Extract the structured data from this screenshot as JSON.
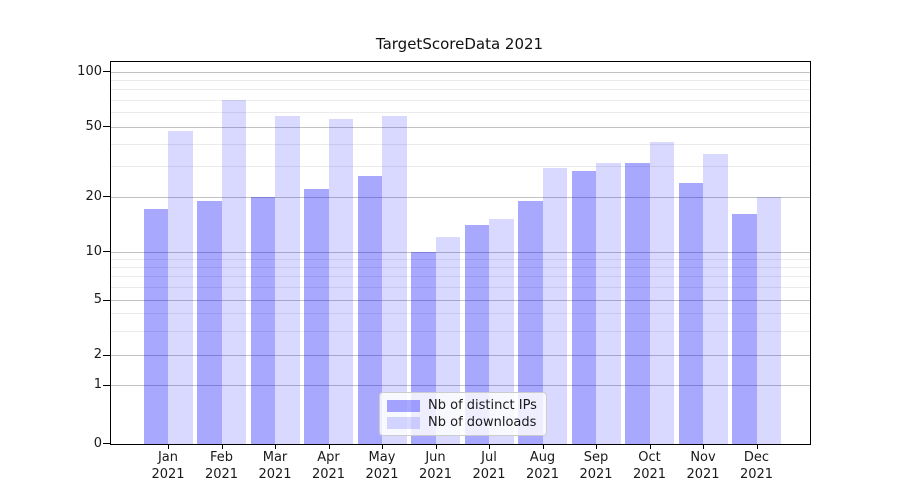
{
  "chart_data": {
    "type": "bar",
    "title": "TargetScoreData 2021",
    "categories": [
      "Jan",
      "Feb",
      "Mar",
      "Apr",
      "May",
      "Jun",
      "Jul",
      "Aug",
      "Sep",
      "Oct",
      "Nov",
      "Dec"
    ],
    "category_year": "2021",
    "series": [
      {
        "name": "Nb of distinct IPs",
        "color": "rgba(0,0,255,0.34)",
        "values": [
          17,
          19,
          20,
          22,
          26,
          10,
          14,
          19,
          28,
          31,
          24,
          16
        ]
      },
      {
        "name": "Nb of downloads",
        "color": "rgba(0,0,255,0.15)",
        "values": [
          47,
          70,
          57,
          55,
          57,
          12,
          15,
          29,
          31,
          41,
          35,
          20
        ]
      }
    ],
    "yticks": [
      0,
      1,
      2,
      5,
      10,
      20,
      50,
      100
    ],
    "xlabel": "",
    "ylabel": "",
    "ylim": [
      0,
      110
    ],
    "yscale": "log-like with 0 baseline",
    "grid": true,
    "legend_position": "lower center",
    "colors": {
      "grid_major": "#c2c2c2",
      "grid_minor": "#ebebeb",
      "spine": "#000000"
    }
  }
}
